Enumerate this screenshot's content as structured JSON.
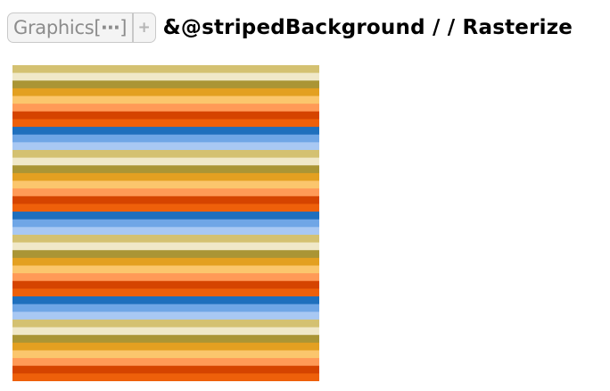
{
  "input": {
    "iconized_label": "Graphics[",
    "iconized_ellipsis": "⋯",
    "iconized_close": "]",
    "plus_glyph": "+",
    "code_text": "&@stripedBackground  / /  Rasterize"
  },
  "output": {
    "stripe_colors": [
      "#d4c171",
      "#f0e8c8",
      "#aa9535",
      "#e3a021",
      "#fbc66d",
      "#ff9a57",
      "#d54400",
      "#ee600a",
      "#1e6fbd",
      "#6fa6e6",
      "#a8c8f3",
      "#d4c171",
      "#f0e8c8",
      "#aa9535",
      "#e3a021",
      "#fbc66d",
      "#ff9a57",
      "#d54400",
      "#ee600a",
      "#1e6fbd",
      "#6fa6e6",
      "#a8c8f3",
      "#d4c171",
      "#f0e8c8",
      "#aa9535",
      "#e3a021",
      "#fbc66d",
      "#ff9a57",
      "#d54400",
      "#ee600a",
      "#1e6fbd",
      "#6fa6e6",
      "#a8c8f3",
      "#d4c171",
      "#f0e8c8",
      "#aa9535",
      "#e3a021",
      "#fbc66d",
      "#ff9a57",
      "#d54400",
      "#ee600a"
    ]
  }
}
